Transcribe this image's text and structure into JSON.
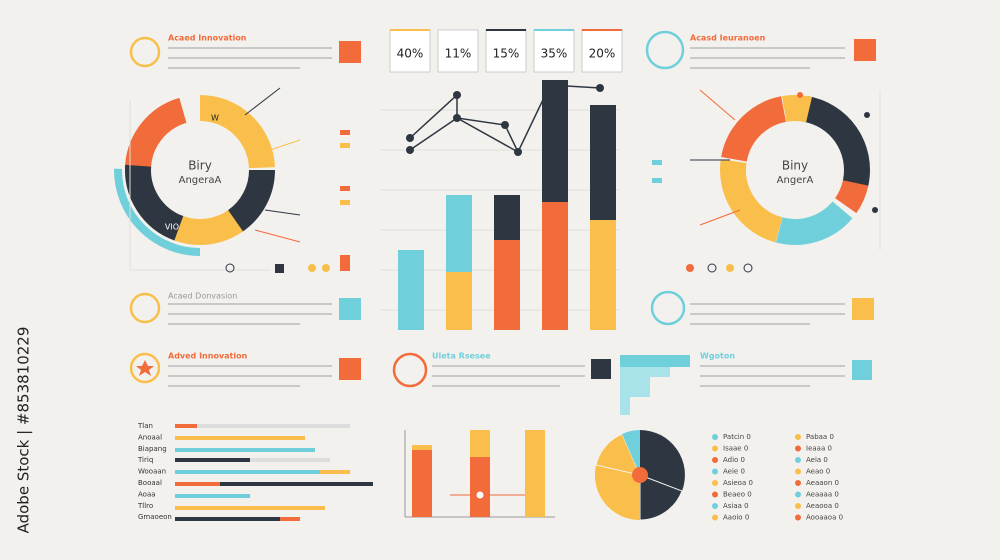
{
  "watermark": "Adobe Stock | #853810229",
  "stats": [
    "40%",
    "11%",
    "15%",
    "35%",
    "20%"
  ],
  "left_donut": {
    "title": "Biry",
    "subtitle": "AngeraA",
    "segment_a": "W",
    "segment_b": "VIO"
  },
  "right_donut": {
    "title": "Biny",
    "subtitle": "AngerA"
  },
  "headings": [
    "Acaed Innovation",
    "Acaed Donvasion",
    "Adved Innovation",
    "Acasd Ieuranoen",
    "Uleta Rsesee",
    "Wgoton"
  ],
  "bar_list_labels": [
    "Tlan",
    "Anoaal",
    "Biapang",
    "Tiriq",
    "Wooaan",
    "Booaal",
    "Aoaa",
    "Tllro",
    "Gmaoeon"
  ],
  "legend_left": [
    "Patcin 0",
    "Isaae 0",
    "Adio 0",
    "Aeie 0",
    "Asieoa 0",
    "Beaeo 0",
    "Asiaa 0",
    "Aaoio 0"
  ],
  "legend_right": [
    "Pabaa 0",
    "Ieaaa 0",
    "Aeia 0",
    "Aeao 0",
    "Aeaaon 0",
    "Aeaaaa 0",
    "Aeaooa 0",
    "Aooaaoa 0"
  ]
}
